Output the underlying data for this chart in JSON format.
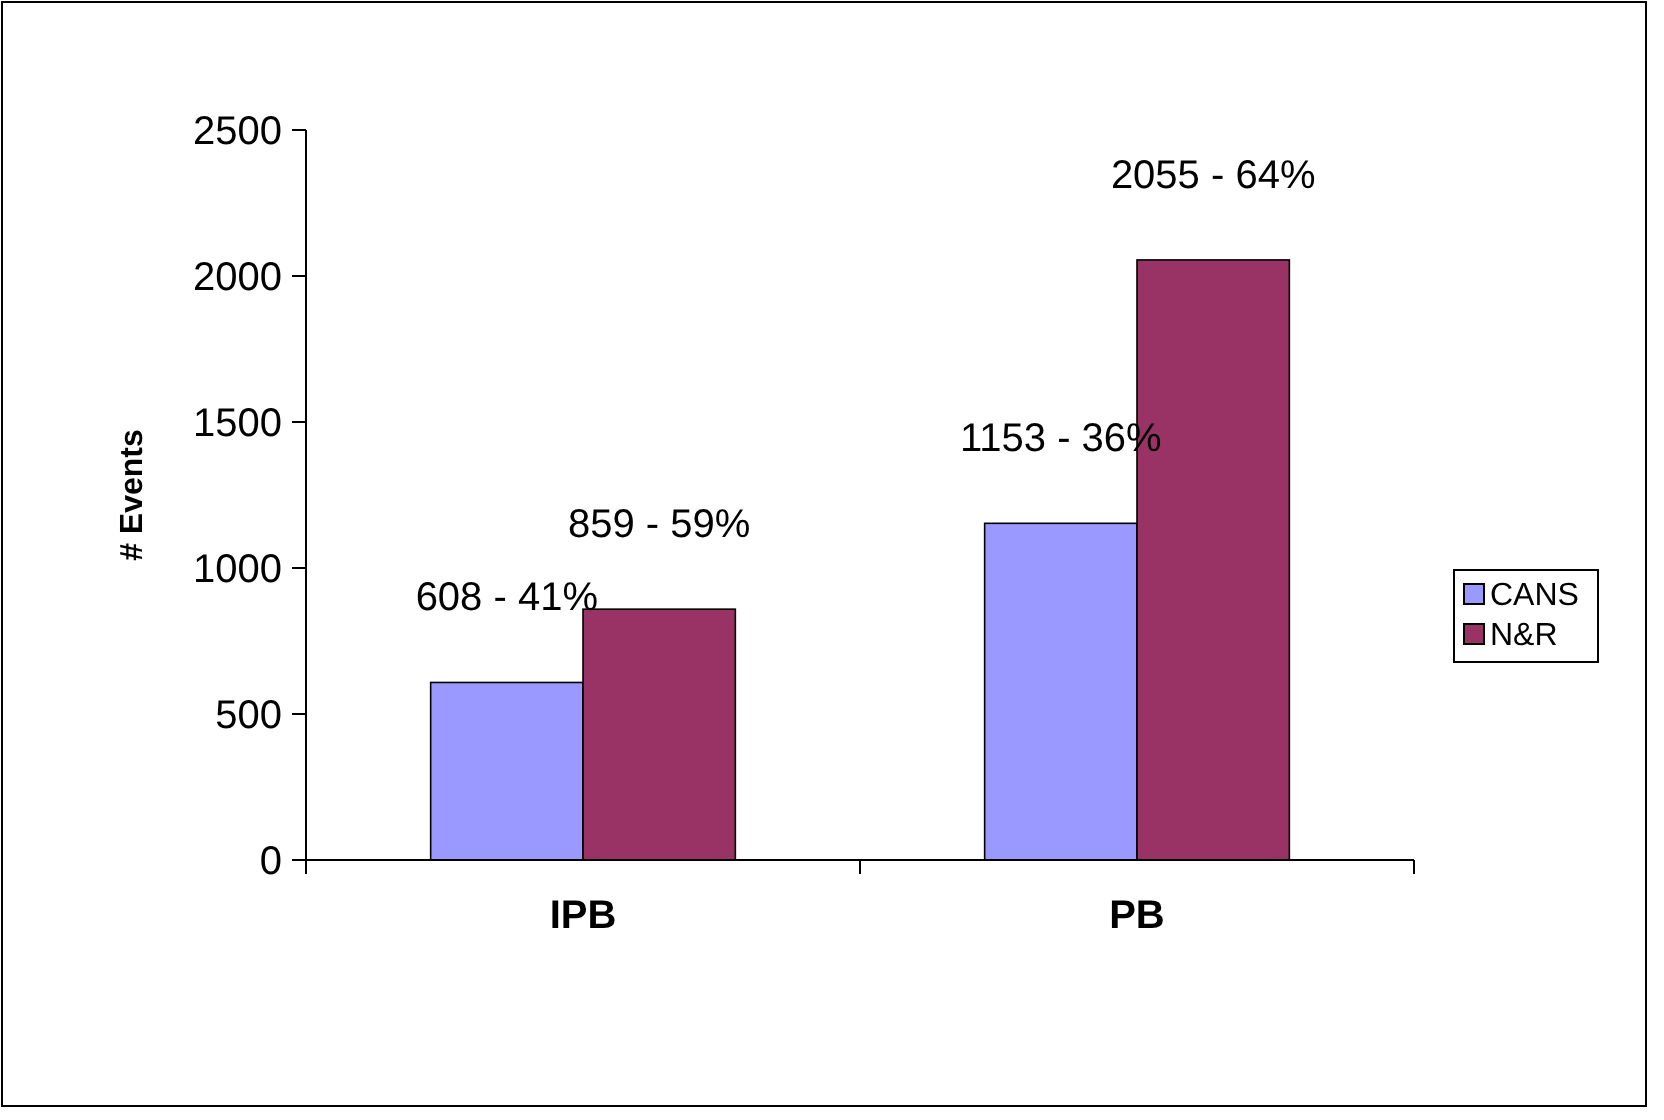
{
  "chart_data": {
    "type": "bar",
    "ylabel": "# Events",
    "categories": [
      "IPB",
      "PB"
    ],
    "series": [
      {
        "name": "CANS",
        "color": "#9999ff",
        "values": [
          608,
          1153
        ],
        "value_labels": [
          "608 - 41%",
          "1153 - 36%"
        ]
      },
      {
        "name": "N&R",
        "color": "#993366",
        "values": [
          859,
          2055
        ],
        "value_labels": [
          "859 - 59%",
          "2055 - 64%"
        ]
      }
    ],
    "ylim": [
      0,
      2500
    ],
    "yticks": [
      0,
      500,
      1000,
      1500,
      2000,
      2500
    ],
    "grid": false,
    "legend": "right"
  }
}
